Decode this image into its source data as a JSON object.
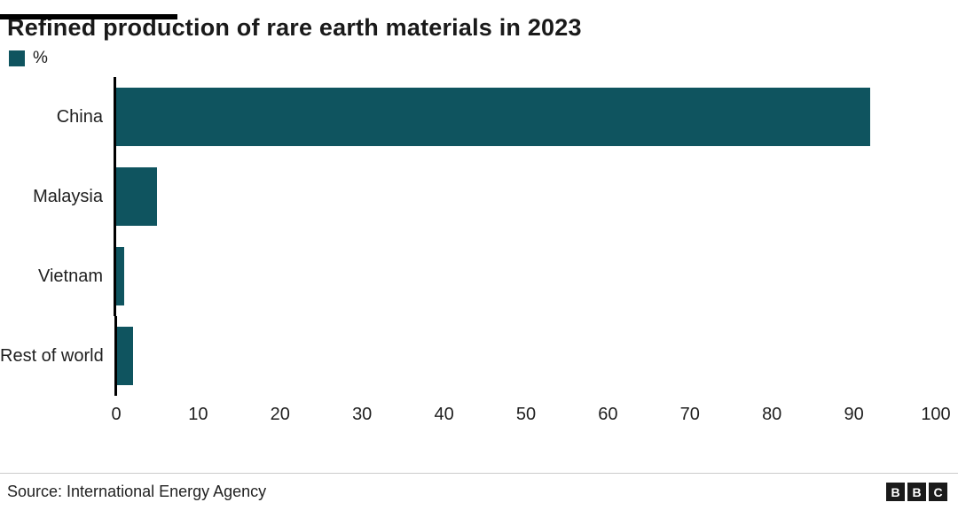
{
  "header": {
    "title": "Refined production of rare earth materials in 2023"
  },
  "legend": {
    "label": "%",
    "swatch_color": "#0f545f"
  },
  "chart_data": {
    "type": "bar",
    "orientation": "horizontal",
    "title": "Refined production of rare earth materials in 2023",
    "categories": [
      "China",
      "Malaysia",
      "Vietnam",
      "Rest of world"
    ],
    "values": [
      92,
      5,
      1,
      2
    ],
    "unit": "%",
    "xlabel": "",
    "ylabel": "",
    "xlim": [
      0,
      100
    ],
    "ticks": [
      0,
      10,
      20,
      30,
      40,
      50,
      60,
      70,
      80,
      90,
      100
    ],
    "grid": false,
    "legend_position": "top-left",
    "bar_color": "#0f545f"
  },
  "footer": {
    "source": "Source: International Energy Agency",
    "logo_letters": [
      "B",
      "B",
      "C"
    ]
  }
}
